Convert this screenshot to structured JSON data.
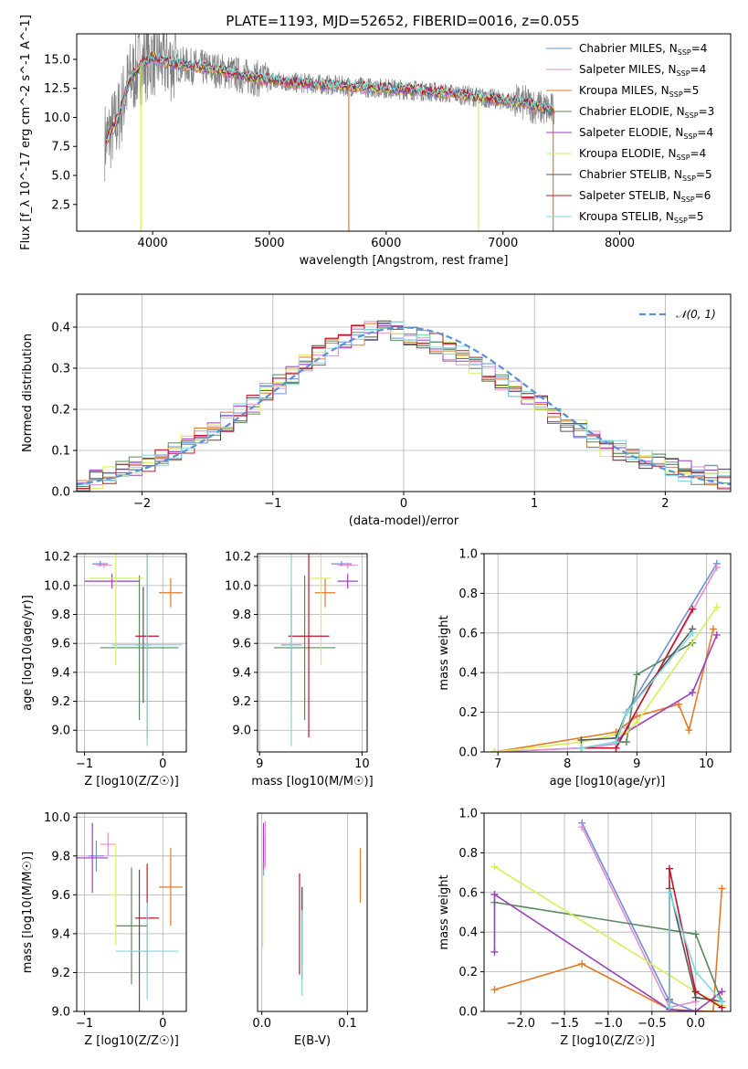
{
  "page": {
    "title": "PLATE=1193, MJD=52652, FIBERID=0016, z=0.055"
  },
  "series_styles": [
    {
      "name": "Chabrier MILES",
      "nssp": "4",
      "color": "#6c8fd6"
    },
    {
      "name": "Salpeter MILES",
      "nssp": "4",
      "color": "#e38fcf"
    },
    {
      "name": "Kroupa MILES",
      "nssp": "5",
      "color": "#e07b2a"
    },
    {
      "name": "Chabrier ELODIE",
      "nssp": "3",
      "color": "#5a8a5e"
    },
    {
      "name": "Salpeter ELODIE",
      "nssp": "4",
      "color": "#9b3fbf"
    },
    {
      "name": "Kroupa ELODIE",
      "nssp": "4",
      "color": "#d7ee5a"
    },
    {
      "name": "Chabrier STELIB",
      "nssp": "5",
      "color": "#555555"
    },
    {
      "name": "Salpeter STELIB",
      "nssp": "6",
      "color": "#c0152a"
    },
    {
      "name": "Kroupa STELIB",
      "nssp": "5",
      "color": "#7fd8e0"
    }
  ],
  "chart_data": [
    {
      "id": "spectrum",
      "type": "line",
      "title": "PLATE=1193, MJD=52652, FIBERID=0016, z=0.055",
      "xlabel": "wavelength [Angstrom, rest frame]",
      "ylabel": "Flux [f_λ 10^-17 erg cm^-2 s^-1 A^-1]",
      "xlim": [
        3350,
        8950
      ],
      "ylim": [
        0.2,
        17.2
      ],
      "xticks": [
        4000,
        5000,
        6000,
        7000,
        8000
      ],
      "yticks": [
        2.5,
        5.0,
        7.5,
        10.0,
        12.5,
        15.0
      ],
      "data_color": "#808080",
      "legend": "right",
      "approx_continuum": {
        "x": [
          3600,
          3700,
          3800,
          3900,
          4000,
          4100,
          4200,
          4400,
          4600,
          4800,
          5000,
          5200,
          5500,
          5800,
          6000,
          6300,
          6600,
          6900,
          7200,
          7400
        ],
        "y": [
          8.0,
          9.8,
          13.2,
          14.5,
          15.2,
          14.8,
          14.6,
          14.3,
          14.0,
          13.5,
          13.2,
          13.0,
          12.8,
          12.6,
          12.5,
          12.3,
          12.0,
          11.6,
          11.2,
          10.6
        ]
      }
    },
    {
      "id": "residuals",
      "type": "bar",
      "xlabel": "(data-model)/error",
      "ylabel": "Normed distribution",
      "xlim": [
        -2.5,
        2.5
      ],
      "ylim": [
        0.0,
        0.48
      ],
      "xticks": [
        -2,
        -1,
        0,
        1,
        2
      ],
      "yticks": [
        0.0,
        0.1,
        0.2,
        0.3,
        0.4
      ],
      "legend": "top-right",
      "reference_label": "𝒩(0, 1)",
      "reference_color": "#5b8fd6",
      "bin_edges_range": [
        -2.5,
        2.5
      ],
      "nbins": 50,
      "base_hist": [
        0.02,
        0.03,
        0.04,
        0.05,
        0.06,
        0.07,
        0.08,
        0.1,
        0.11,
        0.13,
        0.15,
        0.17,
        0.19,
        0.21,
        0.24,
        0.26,
        0.28,
        0.31,
        0.33,
        0.35,
        0.36,
        0.38,
        0.39,
        0.4,
        0.39,
        0.38,
        0.37,
        0.36,
        0.34,
        0.33,
        0.31,
        0.29,
        0.27,
        0.25,
        0.23,
        0.21,
        0.19,
        0.17,
        0.15,
        0.13,
        0.11,
        0.1,
        0.09,
        0.08,
        0.07,
        0.06,
        0.05,
        0.04,
        0.04,
        0.03
      ]
    },
    {
      "id": "age_vs_Z",
      "type": "scatter",
      "xlabel": "Z [log10(Z/Z☉)]",
      "ylabel": "age  [log10(age/yr)]",
      "xlim": [
        -1.1,
        0.3
      ],
      "ylim": [
        8.85,
        10.22
      ],
      "xticks": [
        -1,
        0
      ],
      "yticks": [
        9.0,
        9.2,
        9.4,
        9.6,
        9.8,
        10.0,
        10.2
      ],
      "points": [
        {
          "x": -0.8,
          "y": 10.15,
          "xerr": 0.1,
          "yerr": 0.02
        },
        {
          "x": -0.75,
          "y": 10.14,
          "xerr": 0.1,
          "yerr": 0.02
        },
        {
          "x": 0.1,
          "y": 9.95,
          "xerr": 0.15,
          "yerr": 0.1
        },
        {
          "x": -0.3,
          "y": 9.57,
          "xerr": 0.5,
          "yerr": 0.5
        },
        {
          "x": -0.65,
          "y": 10.03,
          "xerr": 0.35,
          "yerr": 0.05
        },
        {
          "x": -0.6,
          "y": 10.05,
          "xerr": 0.35,
          "yerr": 0.6
        },
        {
          "x": -0.25,
          "y": 9.59,
          "xerr": 0.1,
          "yerr": 0.4
        },
        {
          "x": -0.2,
          "y": 9.65,
          "xerr": 0.15,
          "yerr": 0.7
        },
        {
          "x": -0.2,
          "y": 9.59,
          "xerr": 0.45,
          "yerr": 0.7
        }
      ]
    },
    {
      "id": "age_vs_mass",
      "type": "scatter",
      "xlabel": "mass [log10(M/M☉)]",
      "ylabel": "",
      "xlim": [
        8.98,
        10.05
      ],
      "ylim": [
        8.85,
        10.22
      ],
      "xticks": [
        9,
        10
      ],
      "yticks": [
        9.0,
        9.2,
        9.4,
        9.6,
        9.8,
        10.0,
        10.2
      ],
      "points": [
        {
          "x": 9.8,
          "y": 10.15,
          "xerr": 0.1,
          "yerr": 0.02
        },
        {
          "x": 9.86,
          "y": 10.14,
          "xerr": 0.1,
          "yerr": 0.02
        },
        {
          "x": 9.64,
          "y": 9.95,
          "xerr": 0.1,
          "yerr": 0.1
        },
        {
          "x": 9.44,
          "y": 9.57,
          "xerr": 0.3,
          "yerr": 0.5
        },
        {
          "x": 9.86,
          "y": 10.03,
          "xerr": 0.1,
          "yerr": 0.05
        },
        {
          "x": 9.6,
          "y": 10.05,
          "xerr": 0.1,
          "yerr": 0.6
        },
        {
          "x": 9.31,
          "y": 9.59,
          "xerr": 0.1,
          "yerr": 0.4
        },
        {
          "x": 9.48,
          "y": 9.65,
          "xerr": 0.2,
          "yerr": 0.7
        },
        {
          "x": 9.31,
          "y": 9.59,
          "xerr": 0.1,
          "yerr": 0.7
        }
      ]
    },
    {
      "id": "massweight_vs_age",
      "type": "line",
      "xlabel": "age  [log10(age/yr)]",
      "ylabel": "mass weight",
      "xlim": [
        6.8,
        10.35
      ],
      "ylim": [
        0.0,
        1.0
      ],
      "xticks": [
        7,
        8,
        9,
        10
      ],
      "yticks": [
        0.0,
        0.2,
        0.4,
        0.6,
        0.8,
        1.0
      ],
      "series": [
        {
          "x": [
            6.95,
            8.2,
            8.7,
            8.85,
            10.15
          ],
          "y": [
            0.0,
            0.02,
            0.04,
            0.2,
            0.95
          ]
        },
        {
          "x": [
            6.95,
            8.2,
            8.7,
            8.85,
            10.15
          ],
          "y": [
            0.0,
            0.02,
            0.04,
            0.12,
            0.93
          ]
        },
        {
          "x": [
            6.95,
            8.7,
            9.0,
            9.6,
            9.75,
            10.1
          ],
          "y": [
            0.0,
            0.1,
            0.18,
            0.24,
            0.11,
            0.62
          ]
        },
        {
          "x": [
            8.7,
            8.85,
            9.0,
            9.8
          ],
          "y": [
            0.05,
            0.05,
            0.39,
            0.55
          ]
        },
        {
          "x": [
            8.7,
            8.85,
            9.8,
            10.15
          ],
          "y": [
            0.05,
            0.1,
            0.3,
            0.59
          ]
        },
        {
          "x": [
            6.95,
            8.2,
            8.85,
            9.0,
            10.15
          ],
          "y": [
            0.0,
            0.05,
            0.1,
            0.15,
            0.73
          ]
        },
        {
          "x": [
            8.2,
            8.7,
            8.85,
            9.8
          ],
          "y": [
            0.06,
            0.07,
            0.2,
            0.62
          ]
        },
        {
          "x": [
            8.2,
            8.7,
            9.8
          ],
          "y": [
            0.02,
            0.02,
            0.72
          ]
        },
        {
          "x": [
            8.2,
            8.7,
            8.85,
            9.8
          ],
          "y": [
            0.02,
            0.05,
            0.2,
            0.6
          ]
        }
      ]
    },
    {
      "id": "mass_vs_Z",
      "type": "scatter",
      "xlabel": "Z [log10(Z/Z☉)]",
      "ylabel": "mass [log10(M/M☉)]",
      "xlim": [
        -1.1,
        0.3
      ],
      "ylim": [
        9.0,
        10.02
      ],
      "xticks": [
        -1,
        0
      ],
      "yticks": [
        9.0,
        9.2,
        9.4,
        9.6,
        9.8,
        10.0
      ],
      "points": [
        {
          "x": -0.85,
          "y": 9.8,
          "xerr": 0.1,
          "yerr": 0.08
        },
        {
          "x": -0.7,
          "y": 9.86,
          "xerr": 0.1,
          "yerr": 0.06
        },
        {
          "x": 0.1,
          "y": 9.64,
          "xerr": 0.15,
          "yerr": 0.2
        },
        {
          "x": -0.4,
          "y": 9.44,
          "xerr": 0.2,
          "yerr": 0.3
        },
        {
          "x": -0.9,
          "y": 9.79,
          "xerr": 0.2,
          "yerr": 0.18
        },
        {
          "x": -0.6,
          "y": 9.6,
          "xerr": 0.1,
          "yerr": 0.26
        },
        {
          "x": -0.3,
          "y": 9.31,
          "xerr": 0.1,
          "yerr": 0.42
        },
        {
          "x": -0.2,
          "y": 9.48,
          "xerr": 0.15,
          "yerr": 0.28
        },
        {
          "x": -0.2,
          "y": 9.31,
          "xerr": 0.4,
          "yerr": 0.25
        }
      ]
    },
    {
      "id": "mass_vs_ebv",
      "type": "scatter",
      "xlabel": "E(B-V)",
      "ylabel": "",
      "xlim": [
        -0.005,
        0.123
      ],
      "ylim": [
        9.0,
        10.02
      ],
      "xticks": [
        0.0,
        0.1
      ],
      "points": [
        {
          "x": 0.002,
          "y": 9.8,
          "xerr": 0.0,
          "yerr": 0.1
        },
        {
          "x": 0.004,
          "y": 9.86,
          "xerr": 0.0,
          "yerr": 0.12
        },
        {
          "x": 0.115,
          "y": 9.7,
          "xerr": 0.0,
          "yerr": 0.14
        },
        {
          "x": 0.047,
          "y": 9.44,
          "xerr": 0.0,
          "yerr": 0.2
        },
        {
          "x": 0.002,
          "y": 9.85,
          "xerr": 0.0,
          "yerr": 0.12
        },
        {
          "x": 0.001,
          "y": 9.55,
          "xerr": 0.0,
          "yerr": 0.22
        },
        {
          "x": 0.047,
          "y": 9.4,
          "xerr": 0.0,
          "yerr": 0.24
        },
        {
          "x": 0.044,
          "y": 9.45,
          "xerr": 0.0,
          "yerr": 0.26
        },
        {
          "x": 0.047,
          "y": 9.3,
          "xerr": 0.0,
          "yerr": 0.22
        }
      ]
    },
    {
      "id": "massweight_vs_Z",
      "type": "line",
      "xlabel": "Z [log10(Z/Z☉)]",
      "ylabel": "mass weight",
      "xlim": [
        -2.42,
        0.4
      ],
      "ylim": [
        0.0,
        1.0
      ],
      "xticks": [
        -2.0,
        -1.5,
        -1.0,
        -0.5,
        0.0
      ],
      "yticks": [
        0.0,
        0.2,
        0.4,
        0.6,
        0.8,
        1.0
      ],
      "series": [
        {
          "x": [
            -1.3,
            -0.3,
            0.0
          ],
          "y": [
            0.95,
            0.05,
            0.0
          ]
        },
        {
          "x": [
            -1.3,
            -0.3,
            0.0
          ],
          "y": [
            0.93,
            0.02,
            0.05
          ]
        },
        {
          "x": [
            -2.3,
            -1.3,
            -0.3,
            0.2,
            0.3
          ],
          "y": [
            0.11,
            0.24,
            0.01,
            0.0,
            0.62
          ]
        },
        {
          "x": [
            -2.3,
            0.0,
            0.3
          ],
          "y": [
            0.55,
            0.39,
            0.05
          ]
        },
        {
          "x": [
            -2.3,
            -2.3,
            -0.3,
            0.0,
            0.3
          ],
          "y": [
            0.3,
            0.59,
            0.01,
            0.0,
            0.1
          ]
        },
        {
          "x": [
            -2.3,
            0.0,
            0.3
          ],
          "y": [
            0.73,
            0.1,
            0.03
          ]
        },
        {
          "x": [
            -0.3,
            -0.3,
            0.0,
            0.3
          ],
          "y": [
            0.06,
            0.62,
            0.07,
            0.05
          ]
        },
        {
          "x": [
            -0.3,
            -0.3,
            0.0,
            0.3
          ],
          "y": [
            0.02,
            0.72,
            0.1,
            0.02
          ]
        },
        {
          "x": [
            -0.3,
            -0.3,
            0.0,
            0.3
          ],
          "y": [
            0.02,
            0.6,
            0.2,
            0.05
          ]
        }
      ]
    }
  ]
}
